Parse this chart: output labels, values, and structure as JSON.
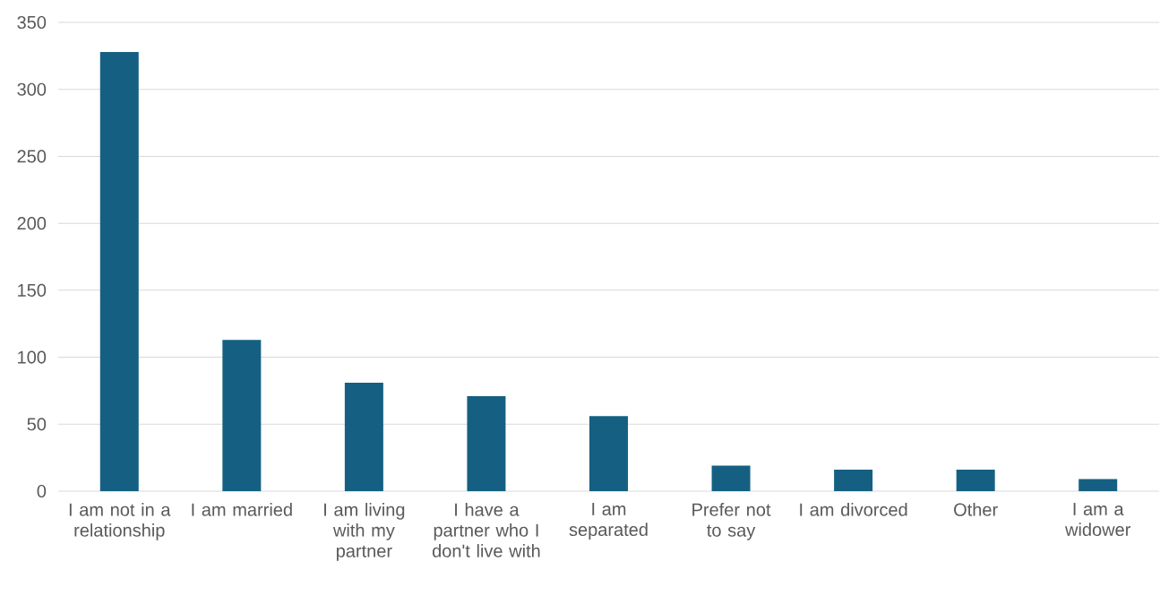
{
  "chart_data": {
    "type": "bar",
    "categories": [
      "I am not in a relationship",
      "I am married",
      "I am living with my partner",
      "I have a partner who I don't live with",
      "I am separated",
      "Prefer not to say",
      "I am divorced",
      "Other",
      "I am a widower"
    ],
    "values": [
      328,
      113,
      81,
      71,
      56,
      19,
      16,
      16,
      9
    ],
    "color": "#156082",
    "ylim": [
      0,
      350
    ],
    "yticks": [
      0,
      50,
      100,
      150,
      200,
      250,
      300,
      350
    ],
    "grid": "y"
  }
}
